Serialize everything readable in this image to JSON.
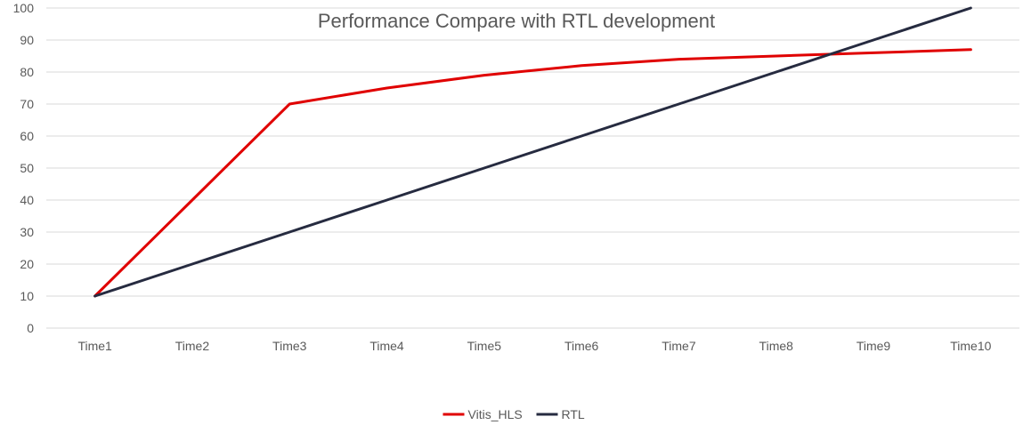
{
  "chart_data": {
    "type": "line",
    "title": "Performance Compare with RTL development",
    "xlabel": "",
    "ylabel": "",
    "categories": [
      "Time1",
      "Time2",
      "Time3",
      "Time4",
      "Time5",
      "Time6",
      "Time7",
      "Time8",
      "Time9",
      "Time10"
    ],
    "ylim": [
      0,
      100
    ],
    "yticks": [
      0,
      10,
      20,
      30,
      40,
      50,
      60,
      70,
      80,
      90,
      100
    ],
    "grid": true,
    "legend_position": "bottom",
    "series": [
      {
        "name": "Vitis_HLS",
        "color": "#e00000",
        "values": [
          10,
          40,
          70,
          75,
          79,
          82,
          84,
          85,
          86,
          87
        ]
      },
      {
        "name": "RTL",
        "color": "#262b40",
        "values": [
          10,
          20,
          30,
          40,
          50,
          60,
          70,
          80,
          90,
          100
        ]
      }
    ]
  }
}
